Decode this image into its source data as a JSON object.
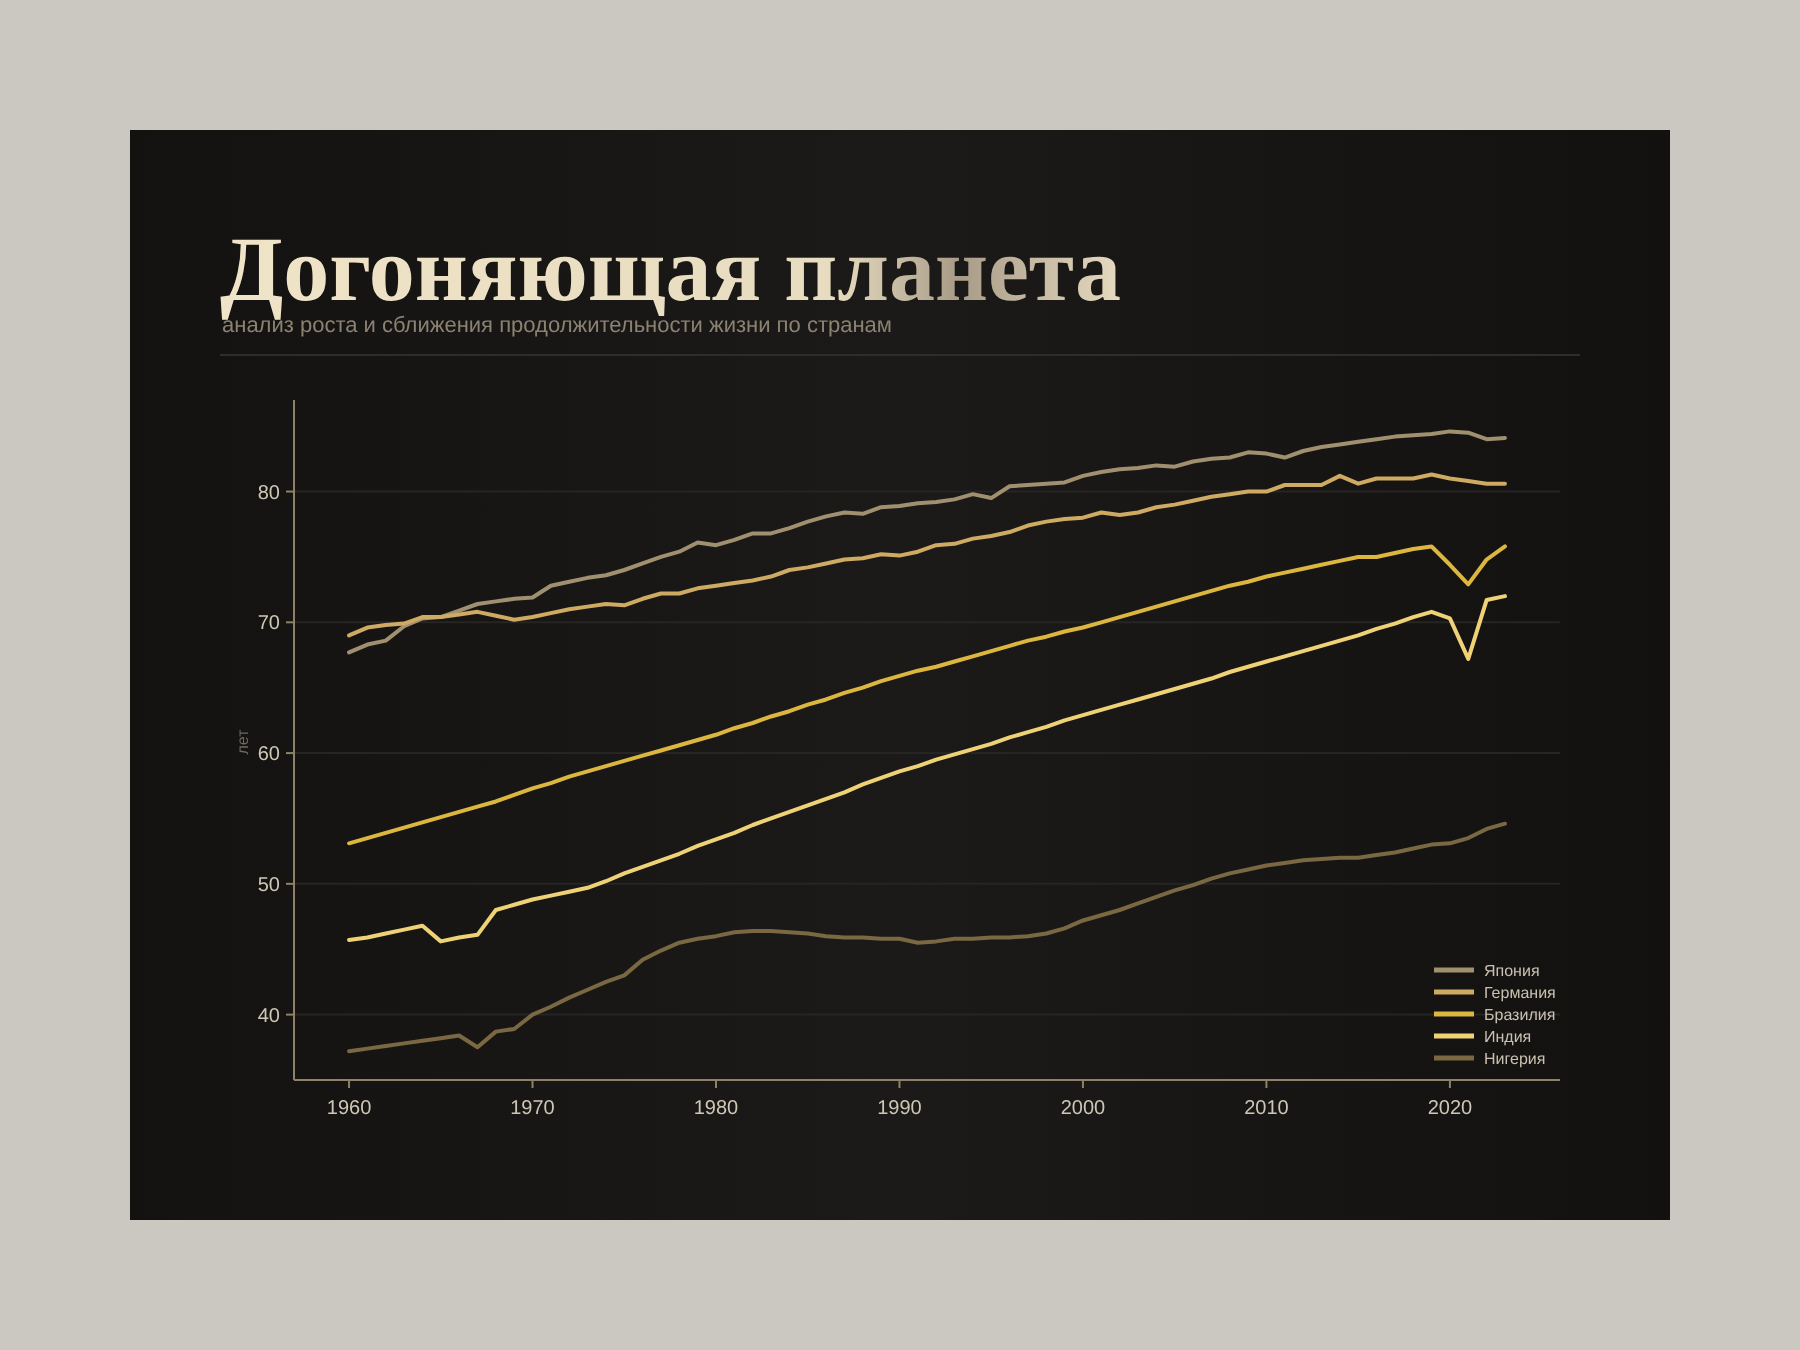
{
  "chart_data": {
    "type": "line",
    "title": "Догоняющая планета",
    "subtitle": "анализ роста и сближения продолжительности жизни по странам",
    "ylabel": "лет",
    "x": [
      1960,
      1961,
      1962,
      1963,
      1964,
      1965,
      1966,
      1967,
      1968,
      1969,
      1970,
      1971,
      1972,
      1973,
      1974,
      1975,
      1976,
      1977,
      1978,
      1979,
      1980,
      1981,
      1982,
      1983,
      1984,
      1985,
      1986,
      1987,
      1988,
      1989,
      1990,
      1991,
      1992,
      1993,
      1994,
      1995,
      1996,
      1997,
      1998,
      1999,
      2000,
      2001,
      2002,
      2003,
      2004,
      2005,
      2006,
      2007,
      2008,
      2009,
      2010,
      2011,
      2012,
      2013,
      2014,
      2015,
      2016,
      2017,
      2018,
      2019,
      2020,
      2021,
      2022,
      2023
    ],
    "series": [
      {
        "name": "Япония",
        "color": "#a0906f",
        "values": [
          67.7,
          68.3,
          68.6,
          69.7,
          70.3,
          70.4,
          70.9,
          71.4,
          71.6,
          71.8,
          71.9,
          72.8,
          73.1,
          73.4,
          73.6,
          74.0,
          74.5,
          75.0,
          75.4,
          76.1,
          75.9,
          76.3,
          76.8,
          76.8,
          77.2,
          77.7,
          78.1,
          78.4,
          78.3,
          78.8,
          78.9,
          79.1,
          79.2,
          79.4,
          79.8,
          79.5,
          80.4,
          80.5,
          80.6,
          80.7,
          81.2,
          81.5,
          81.7,
          81.8,
          82.0,
          81.9,
          82.3,
          82.5,
          82.6,
          83.0,
          82.9,
          82.6,
          83.1,
          83.4,
          83.6,
          83.8,
          84.0,
          84.2,
          84.3,
          84.4,
          84.6,
          84.5,
          84.0,
          84.1
        ]
      },
      {
        "name": "Германия",
        "color": "#cfaa62",
        "values": [
          69.0,
          69.6,
          69.8,
          69.9,
          70.4,
          70.4,
          70.6,
          70.8,
          70.5,
          70.2,
          70.4,
          70.7,
          71.0,
          71.2,
          71.4,
          71.3,
          71.8,
          72.2,
          72.2,
          72.6,
          72.8,
          73.0,
          73.2,
          73.5,
          74.0,
          74.2,
          74.5,
          74.8,
          74.9,
          75.2,
          75.1,
          75.4,
          75.9,
          76.0,
          76.4,
          76.6,
          76.9,
          77.4,
          77.7,
          77.9,
          78.0,
          78.4,
          78.2,
          78.4,
          78.8,
          79.0,
          79.3,
          79.6,
          79.8,
          80.0,
          80.0,
          80.5,
          80.5,
          80.5,
          81.2,
          80.6,
          81.0,
          81.0,
          81.0,
          81.3,
          81.0,
          80.8,
          80.6,
          80.6
        ]
      },
      {
        "name": "Бразилия",
        "color": "#dcb63e",
        "values": [
          53.1,
          53.5,
          53.9,
          54.3,
          54.7,
          55.1,
          55.5,
          55.9,
          56.3,
          56.8,
          57.3,
          57.7,
          58.2,
          58.6,
          59.0,
          59.4,
          59.8,
          60.2,
          60.6,
          61.0,
          61.4,
          61.9,
          62.3,
          62.8,
          63.2,
          63.7,
          64.1,
          64.6,
          65.0,
          65.5,
          65.9,
          66.3,
          66.6,
          67.0,
          67.4,
          67.8,
          68.2,
          68.6,
          68.9,
          69.3,
          69.6,
          70.0,
          70.4,
          70.8,
          71.2,
          71.6,
          72.0,
          72.4,
          72.8,
          73.1,
          73.5,
          73.8,
          74.1,
          74.4,
          74.7,
          75.0,
          75.0,
          75.3,
          75.6,
          75.8,
          74.4,
          72.9,
          74.8,
          75.8
        ]
      },
      {
        "name": "Индия",
        "color": "#f0d276",
        "values": [
          45.7,
          45.9,
          46.2,
          46.5,
          46.8,
          45.6,
          45.9,
          46.1,
          48.0,
          48.4,
          48.8,
          49.1,
          49.4,
          49.7,
          50.2,
          50.8,
          51.3,
          51.8,
          52.3,
          52.9,
          53.4,
          53.9,
          54.5,
          55.0,
          55.5,
          56.0,
          56.5,
          57.0,
          57.6,
          58.1,
          58.6,
          59.0,
          59.5,
          59.9,
          60.3,
          60.7,
          61.2,
          61.6,
          62.0,
          62.5,
          62.9,
          63.3,
          63.7,
          64.1,
          64.5,
          64.9,
          65.3,
          65.7,
          66.2,
          66.6,
          67.0,
          67.4,
          67.8,
          68.2,
          68.6,
          69.0,
          69.5,
          69.9,
          70.4,
          70.8,
          70.3,
          67.2,
          71.7,
          72.0
        ]
      },
      {
        "name": "Нигерия",
        "color": "#7a6843",
        "values": [
          37.2,
          37.4,
          37.6,
          37.8,
          38.0,
          38.2,
          38.4,
          37.5,
          38.7,
          38.9,
          40.0,
          40.6,
          41.3,
          41.9,
          42.5,
          43.0,
          44.2,
          44.9,
          45.5,
          45.8,
          46.0,
          46.3,
          46.4,
          46.4,
          46.3,
          46.2,
          46.0,
          45.9,
          45.9,
          45.8,
          45.8,
          45.5,
          45.6,
          45.8,
          45.8,
          45.9,
          45.9,
          46.0,
          46.2,
          46.6,
          47.2,
          47.6,
          48.0,
          48.5,
          49.0,
          49.5,
          49.9,
          50.4,
          50.8,
          51.1,
          51.4,
          51.6,
          51.8,
          51.9,
          52.0,
          52.0,
          52.2,
          52.4,
          52.7,
          53.0,
          53.1,
          53.5,
          54.2,
          54.6
        ]
      }
    ],
    "xlim": [
      1957,
      2026
    ],
    "xticks": [
      1960,
      1970,
      1980,
      1990,
      2000,
      2010,
      2020
    ],
    "ylim": [
      35,
      87
    ],
    "yticks": [
      40,
      50,
      60,
      70,
      80
    ],
    "grid": "y",
    "legend": "bottom right"
  }
}
